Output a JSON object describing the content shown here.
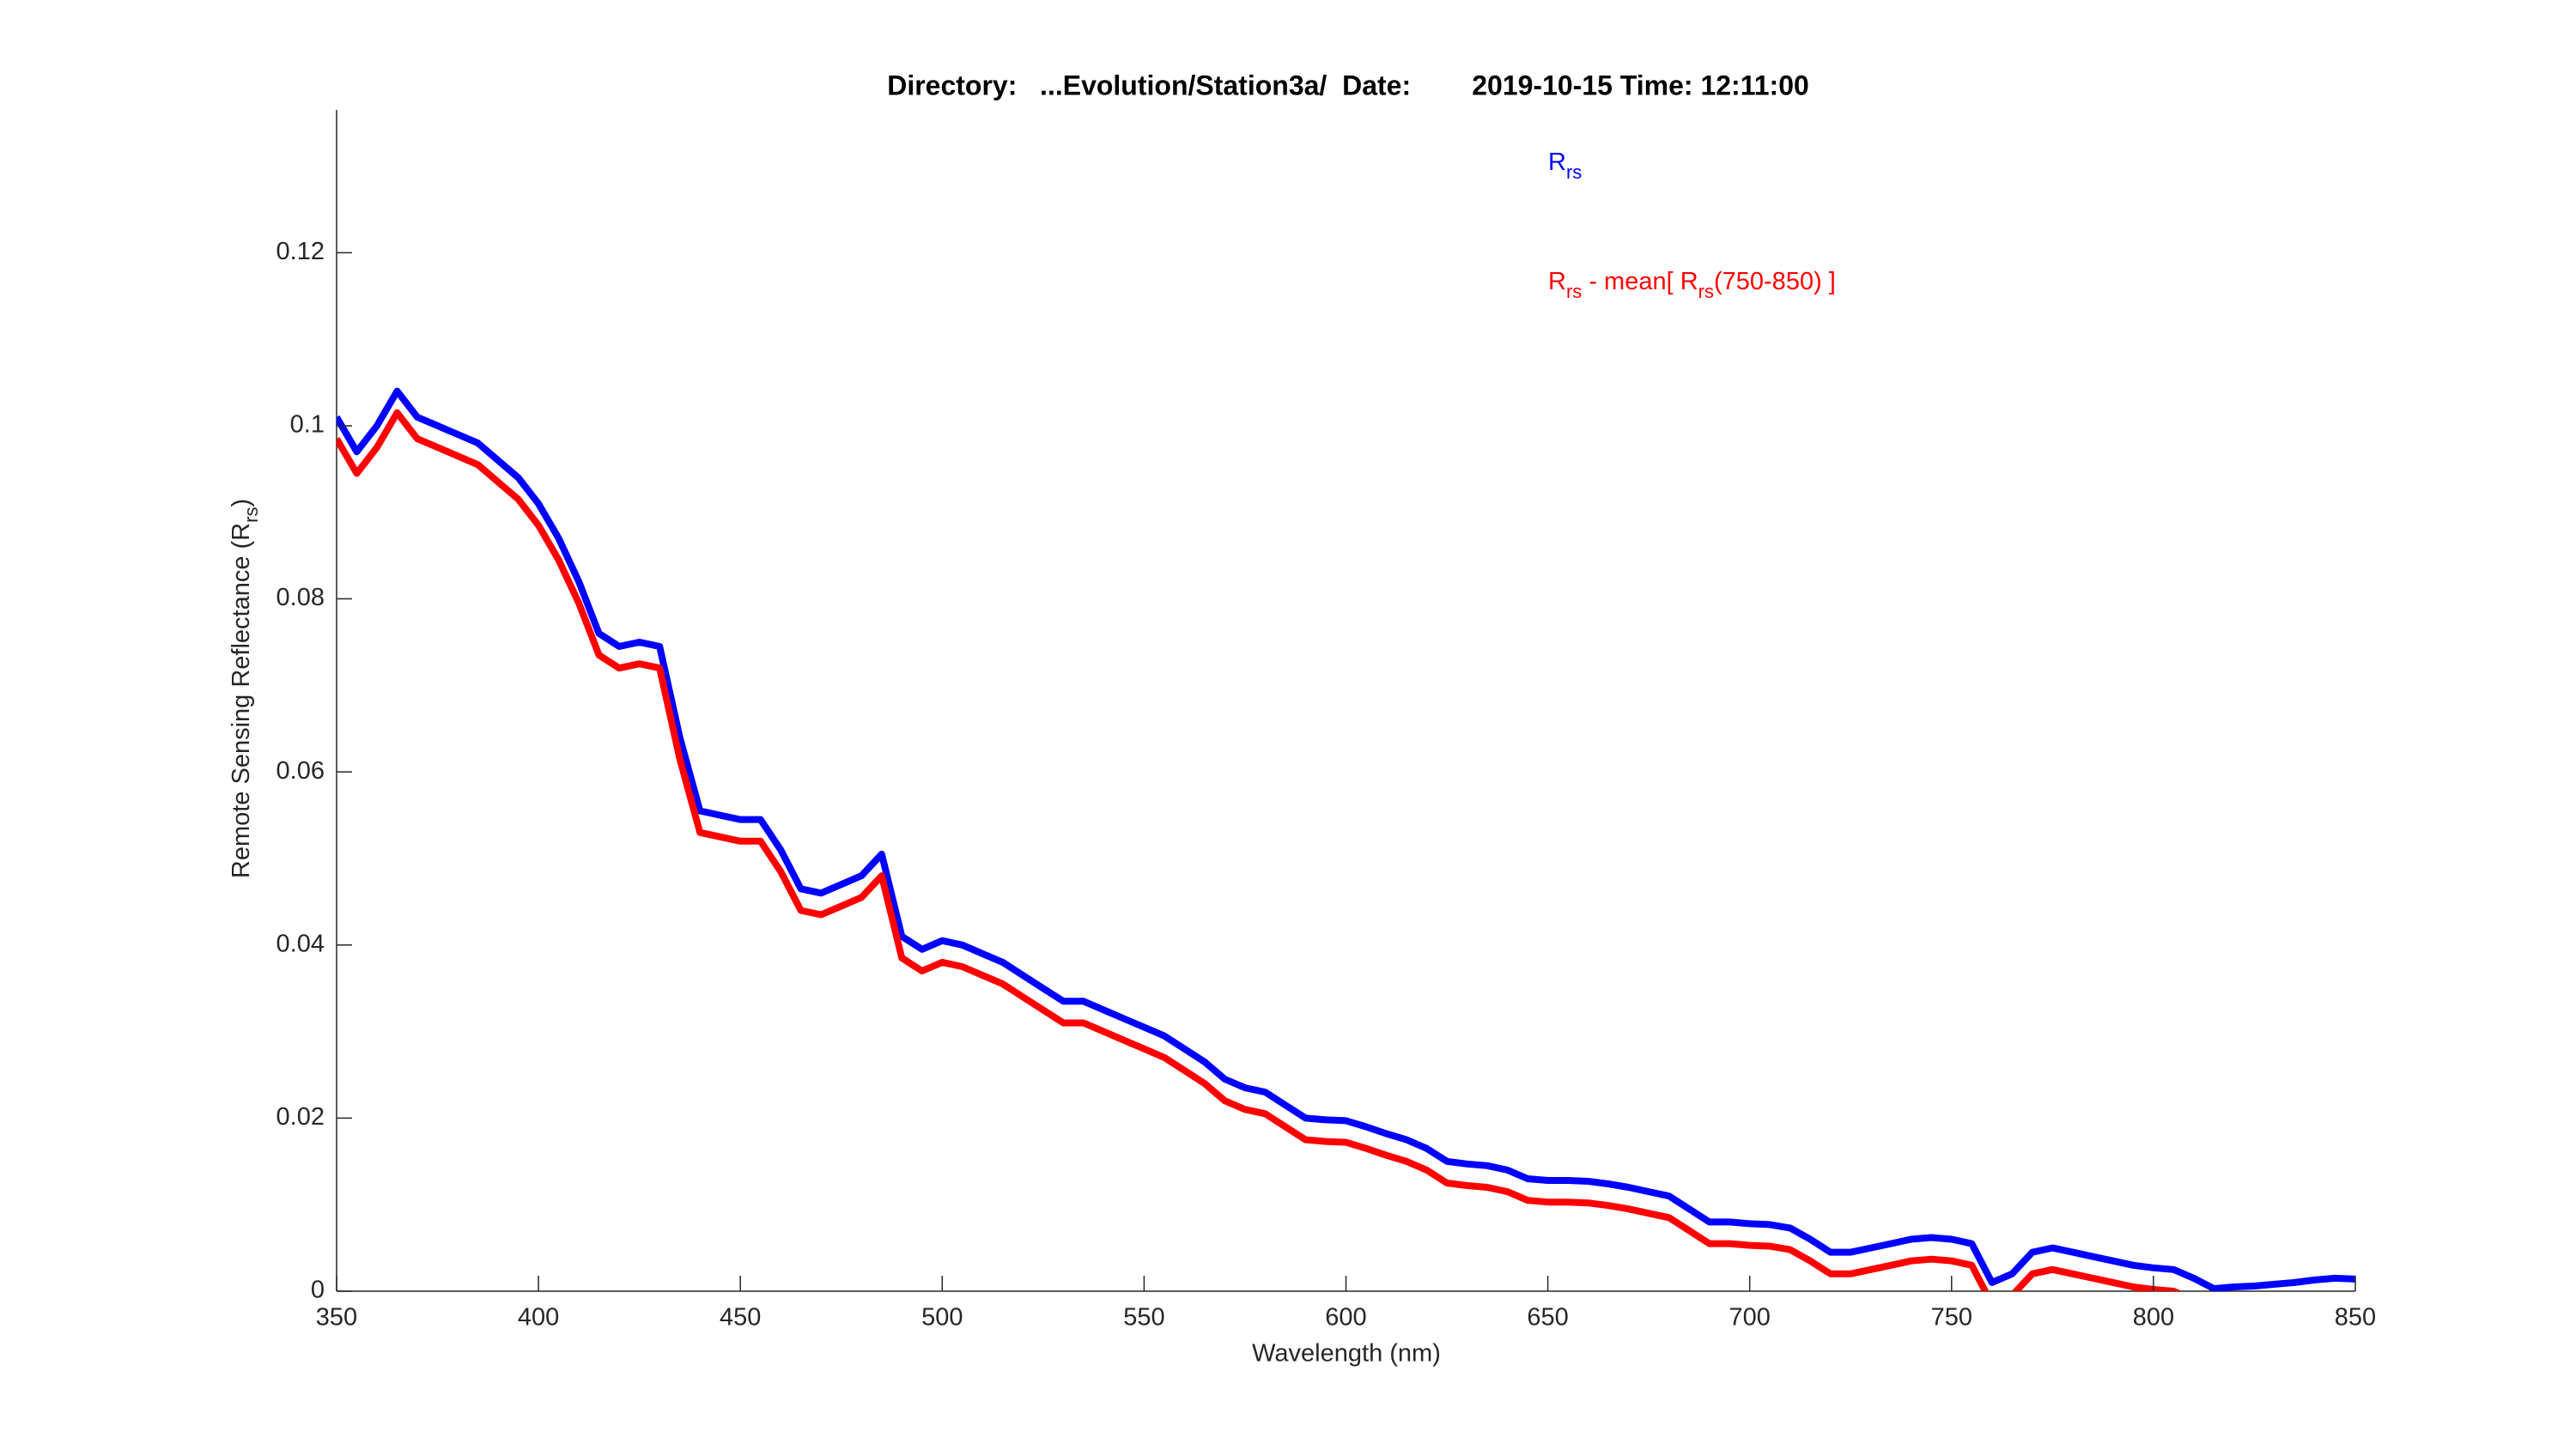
{
  "chart_data": {
    "type": "line",
    "title": "Directory:   ...Evolution/Station3a/  Date:        2019-10-15 Time: 12:11:00",
    "xlabel": "Wavelength (nm)",
    "ylabel": [
      {
        "text": "Remote Sensing Reflectance (R"
      },
      {
        "text": "rs",
        "sub": true
      },
      {
        "text": ")"
      }
    ],
    "x": [
      350,
      355,
      360,
      365,
      370,
      375,
      380,
      385,
      390,
      395,
      400,
      405,
      410,
      415,
      420,
      425,
      430,
      435,
      440,
      445,
      450,
      455,
      460,
      465,
      470,
      475,
      480,
      485,
      490,
      495,
      500,
      505,
      510,
      515,
      520,
      525,
      530,
      535,
      540,
      545,
      550,
      555,
      560,
      565,
      570,
      575,
      580,
      585,
      590,
      595,
      600,
      605,
      610,
      615,
      620,
      625,
      630,
      635,
      640,
      645,
      650,
      655,
      660,
      665,
      670,
      675,
      680,
      685,
      690,
      695,
      700,
      705,
      710,
      715,
      720,
      725,
      730,
      735,
      740,
      745,
      750,
      755,
      760,
      765,
      770,
      775,
      780,
      785,
      790,
      795,
      800,
      805,
      810,
      815,
      820,
      825,
      830,
      835,
      840,
      845,
      850
    ],
    "series": [
      {
        "name": [
          {
            "text": "R"
          },
          {
            "text": "rs",
            "sub": true
          }
        ],
        "color": "#0000ff",
        "values": [
          0.101,
          0.097,
          0.1,
          0.104,
          0.101,
          0.1,
          0.099,
          0.098,
          0.096,
          0.094,
          0.091,
          0.087,
          0.082,
          0.076,
          0.0745,
          0.075,
          0.0745,
          0.064,
          0.0555,
          0.055,
          0.0545,
          0.0545,
          0.051,
          0.0465,
          0.046,
          0.047,
          0.048,
          0.0505,
          0.041,
          0.0395,
          0.0405,
          0.04,
          0.039,
          0.038,
          0.0365,
          0.035,
          0.0335,
          0.0335,
          0.0325,
          0.0315,
          0.0305,
          0.0295,
          0.028,
          0.0265,
          0.0245,
          0.0235,
          0.023,
          0.0215,
          0.02,
          0.0198,
          0.0197,
          0.019,
          0.0182,
          0.0175,
          0.0165,
          0.015,
          0.0147,
          0.0145,
          0.014,
          0.013,
          0.0128,
          0.0128,
          0.0127,
          0.0124,
          0.012,
          0.0115,
          0.011,
          0.0095,
          0.008,
          0.008,
          0.0078,
          0.0077,
          0.0073,
          0.006,
          0.0045,
          0.0045,
          0.005,
          0.0055,
          0.006,
          0.0062,
          0.006,
          0.0055,
          0.001,
          0.002,
          0.0045,
          0.005,
          0.0045,
          0.004,
          0.0035,
          0.003,
          0.0027,
          0.0025,
          0.0015,
          0.0003,
          0.0005,
          0.0006,
          0.0008,
          0.001,
          0.0013,
          0.0015,
          0.0014
        ]
      },
      {
        "name": [
          {
            "text": "R"
          },
          {
            "text": "rs",
            "sub": true
          },
          {
            "text": " - mean[ R"
          },
          {
            "text": "rs",
            "sub": true
          },
          {
            "text": "(750-850) ]"
          }
        ],
        "color": "#ff0000",
        "values": [
          0.0985,
          0.0945,
          0.0975,
          0.1015,
          0.0985,
          0.0975,
          0.0965,
          0.0955,
          0.0935,
          0.0915,
          0.0885,
          0.0845,
          0.0795,
          0.0735,
          0.072,
          0.0725,
          0.072,
          0.0615,
          0.053,
          0.0525,
          0.052,
          0.052,
          0.0485,
          0.044,
          0.0435,
          0.0445,
          0.0455,
          0.048,
          0.0385,
          0.037,
          0.038,
          0.0375,
          0.0365,
          0.0355,
          0.034,
          0.0325,
          0.031,
          0.031,
          0.03,
          0.029,
          0.028,
          0.027,
          0.0255,
          0.024,
          0.022,
          0.021,
          0.0205,
          0.019,
          0.0175,
          0.0173,
          0.0172,
          0.0165,
          0.0157,
          0.015,
          0.014,
          0.0125,
          0.0122,
          0.012,
          0.0115,
          0.0105,
          0.0103,
          0.0103,
          0.0102,
          0.0099,
          0.0095,
          0.009,
          0.0085,
          0.007,
          0.0055,
          0.0055,
          0.0053,
          0.0052,
          0.0048,
          0.0035,
          0.002,
          0.002,
          0.0025,
          0.003,
          0.0035,
          0.0037,
          0.0035,
          0.003,
          -0.0015,
          -0.0005,
          0.002,
          0.0025,
          0.002,
          0.0015,
          0.001,
          0.0005,
          0.0002,
          0.0,
          -0.001,
          -0.0022,
          -0.002,
          -0.0019,
          -0.0017,
          -0.0015,
          -0.0012,
          -0.001,
          -0.0011
        ]
      }
    ],
    "xlim": [
      350,
      850
    ],
    "xticks": [
      350,
      400,
      450,
      500,
      550,
      600,
      650,
      700,
      750,
      800,
      850
    ],
    "ylim": [
      0,
      0.1365
    ],
    "yticks": [
      0,
      0.02,
      0.04,
      0.06,
      0.08,
      0.1,
      0.12
    ],
    "grid": false
  }
}
